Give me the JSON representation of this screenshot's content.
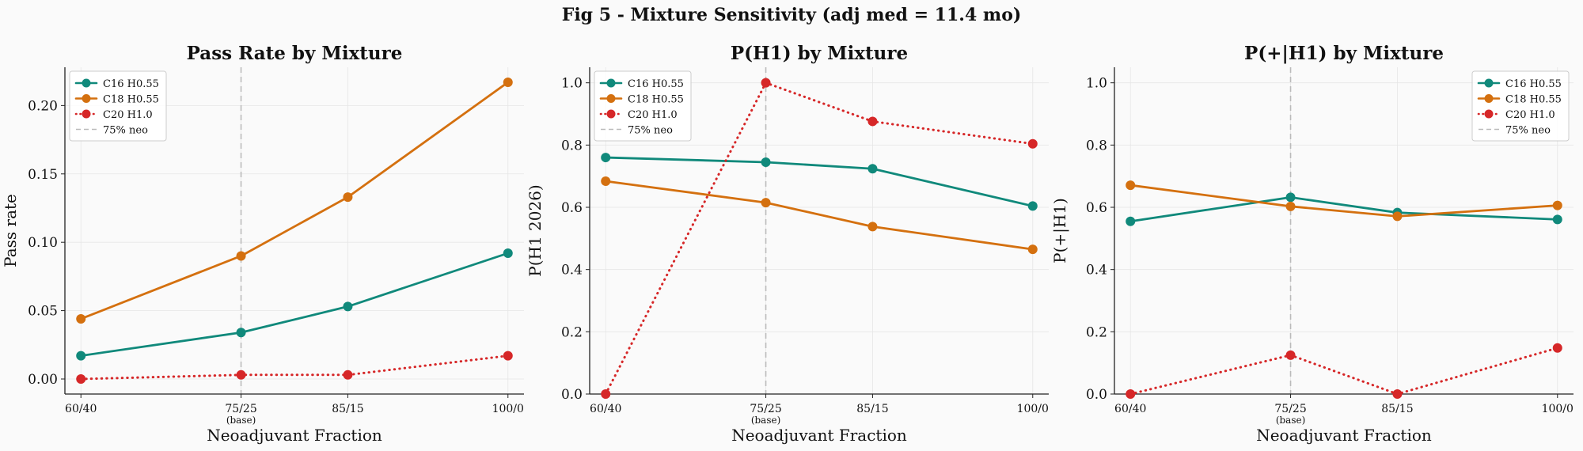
{
  "figure": {
    "suptitle": "Fig 5 - Mixture Sensitivity (adj med = 11.4 mo)"
  },
  "colors": {
    "teal": "#10897b",
    "orange": "#d4700f",
    "red": "#d62728",
    "grid": "#e6e6e6",
    "axis": "#222222",
    "refline": "#bbbbbb"
  },
  "chart_data": [
    {
      "type": "line",
      "title": "Pass Rate by Mixture",
      "xlabel": "Neoadjuvant Fraction",
      "ylabel": "Pass rate",
      "x_values": [
        60,
        75,
        85,
        100
      ],
      "tick_labels": [
        "60/40",
        "75/25",
        "85/15",
        "100/0"
      ],
      "base_label": "(base)",
      "xlim": [
        58.5,
        101.5
      ],
      "ylim": [
        -0.011,
        0.228
      ],
      "yticks": [
        0.0,
        0.05,
        0.1,
        0.15,
        0.2
      ],
      "ytick_labels": [
        "0.00",
        "0.05",
        "0.10",
        "0.15",
        "0.20"
      ],
      "reference_x": 75,
      "legend_position": "top-left",
      "legend": [
        "C16 H0.55",
        "C18 H0.55",
        "C20 H1.0",
        "75% neo"
      ],
      "series": [
        {
          "name": "C16 H0.55",
          "color_key": "teal",
          "style": "solid",
          "values": [
            0.017,
            0.034,
            0.053,
            0.092
          ]
        },
        {
          "name": "C18 H0.55",
          "color_key": "orange",
          "style": "solid",
          "values": [
            0.044,
            0.09,
            0.133,
            0.217
          ]
        },
        {
          "name": "C20 H1.0",
          "color_key": "red",
          "style": "dotted",
          "values": [
            0.0,
            0.003,
            0.003,
            0.017
          ]
        }
      ]
    },
    {
      "type": "line",
      "title": "P(H1) by Mixture",
      "xlabel": "Neoadjuvant Fraction",
      "ylabel": "P(H1 2026)",
      "x_values": [
        60,
        75,
        85,
        100
      ],
      "tick_labels": [
        "60/40",
        "75/25",
        "85/15",
        "100/0"
      ],
      "base_label": "(base)",
      "xlim": [
        58.5,
        101.5
      ],
      "ylim": [
        0,
        1.05
      ],
      "yticks": [
        0.0,
        0.2,
        0.4,
        0.6,
        0.8,
        1.0
      ],
      "ytick_labels": [
        "0.0",
        "0.2",
        "0.4",
        "0.6",
        "0.8",
        "1.0"
      ],
      "reference_x": 75,
      "legend_position": "top-left",
      "legend": [
        "C16 H0.55",
        "C18 H0.55",
        "C20 H1.0",
        "75% neo"
      ],
      "series": [
        {
          "name": "C16 H0.55",
          "color_key": "teal",
          "style": "solid",
          "values": [
            0.76,
            0.745,
            0.724,
            0.604
          ]
        },
        {
          "name": "C18 H0.55",
          "color_key": "orange",
          "style": "solid",
          "values": [
            0.684,
            0.615,
            0.538,
            0.465
          ]
        },
        {
          "name": "C20 H1.0",
          "color_key": "red",
          "style": "dotted",
          "values": [
            0.0,
            1.0,
            0.876,
            0.804
          ]
        }
      ]
    },
    {
      "type": "line",
      "title": "P(+|H1) by Mixture",
      "xlabel": "Neoadjuvant Fraction",
      "ylabel": "P(+|H1)",
      "x_values": [
        60,
        75,
        85,
        100
      ],
      "tick_labels": [
        "60/40",
        "75/25",
        "85/15",
        "100/0"
      ],
      "base_label": "(base)",
      "xlim": [
        58.5,
        101.5
      ],
      "ylim": [
        0,
        1.05
      ],
      "yticks": [
        0.0,
        0.2,
        0.4,
        0.6,
        0.8,
        1.0
      ],
      "ytick_labels": [
        "0.0",
        "0.2",
        "0.4",
        "0.6",
        "0.8",
        "1.0"
      ],
      "reference_x": 75,
      "legend_position": "top-right",
      "legend": [
        "C16 H0.55",
        "C18 H0.55",
        "C20 H1.0",
        "75% neo"
      ],
      "series": [
        {
          "name": "C16 H0.55",
          "color_key": "teal",
          "style": "solid",
          "values": [
            0.555,
            0.632,
            0.583,
            0.561
          ]
        },
        {
          "name": "C18 H0.55",
          "color_key": "orange",
          "style": "solid",
          "values": [
            0.671,
            0.603,
            0.571,
            0.606
          ]
        },
        {
          "name": "C20 H1.0",
          "color_key": "red",
          "style": "dotted",
          "values": [
            0.0,
            0.125,
            0.0,
            0.148
          ]
        }
      ]
    }
  ]
}
